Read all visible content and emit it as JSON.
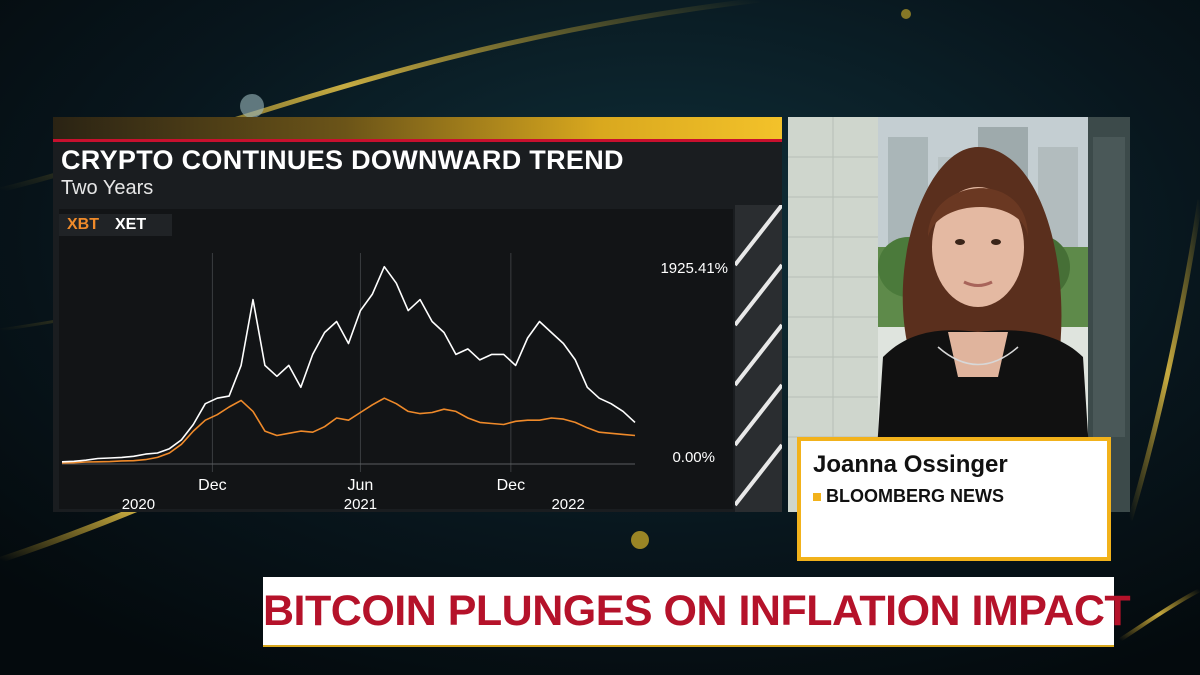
{
  "broadcast": {
    "headline": "BITCOIN PLUNGES ON INFLATION IMPACT",
    "reporter": {
      "name": "Joanna Ossinger",
      "network": "BLOOMBERG NEWS"
    }
  },
  "colors": {
    "accent_gold": "#f2b21b",
    "brand_red": "#c8102e",
    "headline_red": "#b5122a",
    "xbt_orange": "#ef8a2a",
    "xet_white": "#ffffff"
  },
  "chart_data": {
    "type": "line",
    "title": "CRYPTO CONTINUES DOWNWARD TREND",
    "subtitle": "Two Years",
    "ylim": [
      0,
      1925.41
    ],
    "y_tick_labels": [
      "1925.41%",
      "0.00%"
    ],
    "month_labels": [
      "Dec",
      "Jun",
      "Dec"
    ],
    "year_labels": [
      "2020",
      "2021",
      "2022"
    ],
    "grid": true,
    "legend": "top-left",
    "x": [
      0,
      0.5,
      1,
      1.5,
      2,
      2.5,
      3,
      3.5,
      4,
      4.5,
      5,
      5.5,
      6,
      6.5,
      7,
      7.5,
      8,
      8.5,
      9,
      9.5,
      10,
      10.5,
      11,
      11.5,
      12,
      12.5,
      13,
      13.5,
      14,
      14.5,
      15,
      15.5,
      16,
      16.5,
      17,
      17.5,
      18,
      18.5,
      19,
      19.5,
      20,
      20.5,
      21,
      21.5,
      22,
      22.5,
      23,
      23.5,
      24
    ],
    "series": [
      {
        "name": "XBT",
        "color": "#ef8a2a",
        "values": [
          10,
          12,
          18,
          20,
          22,
          28,
          30,
          40,
          60,
          100,
          180,
          300,
          400,
          450,
          520,
          580,
          480,
          300,
          260,
          280,
          300,
          290,
          340,
          420,
          400,
          470,
          540,
          600,
          550,
          480,
          460,
          470,
          500,
          480,
          420,
          380,
          370,
          360,
          390,
          400,
          400,
          420,
          410,
          380,
          330,
          290,
          280,
          270,
          260
        ]
      },
      {
        "name": "XET",
        "color": "#ffffff",
        "values": [
          20,
          25,
          35,
          50,
          55,
          60,
          70,
          90,
          100,
          140,
          220,
          360,
          550,
          600,
          620,
          900,
          1500,
          900,
          800,
          900,
          700,
          1000,
          1200,
          1300,
          1100,
          1400,
          1550,
          1800,
          1650,
          1400,
          1500,
          1300,
          1200,
          1000,
          1050,
          950,
          1000,
          1000,
          900,
          1150,
          1300,
          1200,
          1100,
          950,
          700,
          600,
          550,
          480,
          380
        ]
      }
    ]
  }
}
